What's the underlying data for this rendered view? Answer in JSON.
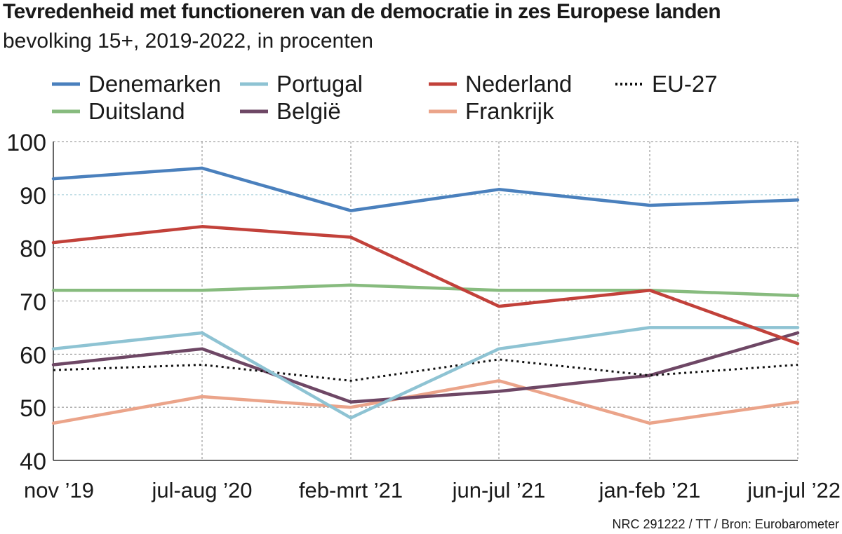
{
  "chart_data": {
    "type": "line",
    "title": "Tevredenheid met functioneren van de democratie in zes Europese landen",
    "subtitle": "bevolking 15+, 2019-2022, in procenten",
    "source": "NRC 291222 / TT / Bron: Eurobarometer",
    "categories": [
      "nov ’19",
      "jul-aug ’20",
      "feb-mrt ’21",
      "jun-jul ’21",
      "jan-feb ’21",
      "jun-jul ’22"
    ],
    "yticks": [
      "100",
      "90",
      "80",
      "70",
      "60",
      "50",
      "40"
    ],
    "ylim": [
      40,
      100
    ],
    "grid": true,
    "legend_position": "top",
    "series": [
      {
        "name": "Denemarken",
        "color": "#4a80bd",
        "dash": "solid",
        "values": [
          93,
          95,
          87,
          91,
          88,
          89
        ]
      },
      {
        "name": "Portugal",
        "color": "#8ec3d3",
        "dash": "solid",
        "values": [
          61,
          64,
          48,
          61,
          65,
          65
        ]
      },
      {
        "name": "Nederland",
        "color": "#c2413a",
        "dash": "solid",
        "values": [
          81,
          84,
          82,
          69,
          72,
          62
        ]
      },
      {
        "name": "EU-27",
        "color": "#111111",
        "dash": "dotted",
        "values": [
          57,
          58,
          55,
          59,
          56,
          58
        ]
      },
      {
        "name": "Duitsland",
        "color": "#87bb7e",
        "dash": "solid",
        "values": [
          72,
          72,
          73,
          72,
          72,
          71
        ]
      },
      {
        "name": "België",
        "color": "#6e4765",
        "dash": "solid",
        "values": [
          58,
          61,
          51,
          53,
          56,
          64
        ]
      },
      {
        "name": "Frankrijk",
        "color": "#eba48a",
        "dash": "solid",
        "values": [
          47,
          52,
          50,
          55,
          47,
          51
        ]
      }
    ]
  }
}
